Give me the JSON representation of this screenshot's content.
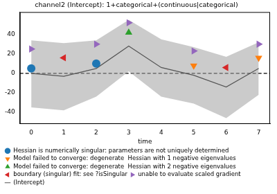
{
  "chart_data": {
    "type": "line",
    "title": "channel2 (Intercept): 1+categorical+(continuous|categorical)",
    "x_label": "time",
    "xlim": [
      -0.35,
      7.35
    ],
    "xticks": [
      0,
      1,
      2,
      3,
      4,
      5,
      6,
      7
    ],
    "ylim": [
      -52,
      63
    ],
    "yticks": [
      -40,
      -20,
      0,
      20,
      40
    ],
    "grid": false,
    "legend": "bottom",
    "hline": 0,
    "series": [
      {
        "name": "(Intercept)",
        "type": "line",
        "color": "#555555",
        "x": [
          0,
          1,
          2,
          3,
          4,
          5,
          6,
          7
        ],
        "values": [
          0,
          -3,
          5,
          28,
          6,
          -2,
          -14,
          5
        ],
        "ci_lower": [
          -35,
          -38,
          -24,
          2,
          -24,
          -31,
          -46,
          -22
        ],
        "ci_upper": [
          34,
          31,
          34,
          55,
          35,
          27,
          17,
          32
        ]
      },
      {
        "name": "Hessian is numerically singular: parameters are not uniquely determined",
        "type": "scatter",
        "color": "#1f77b4",
        "marker": "circle",
        "x": [
          0,
          2
        ],
        "values": [
          5,
          10
        ]
      },
      {
        "name": "Model failed to converge: degenerate  Hessian with 1 negative eigenvalues",
        "type": "scatter",
        "color": "#ff7f0e",
        "marker": "triangle_down",
        "x": [
          5,
          7
        ],
        "values": [
          8,
          16
        ]
      },
      {
        "name": "Model failed to converge: degenerate  Hessian with 2 negative eigenvalues",
        "type": "scatter",
        "color": "#2ca02c",
        "marker": "triangle_up",
        "x": [
          3
        ],
        "values": [
          42
        ]
      },
      {
        "name": "boundary (singular) fit: see ?isSingular",
        "type": "scatter",
        "color": "#d62728",
        "marker": "triangle_left",
        "x": [
          1,
          6
        ],
        "values": [
          16,
          6
        ]
      },
      {
        "name": "unable to evaluate scaled gradient",
        "type": "scatter",
        "color": "#9467bd",
        "marker": "triangle_right",
        "x": [
          0,
          2,
          3,
          5,
          7
        ],
        "values": [
          25,
          30,
          52,
          23,
          30
        ]
      }
    ]
  }
}
